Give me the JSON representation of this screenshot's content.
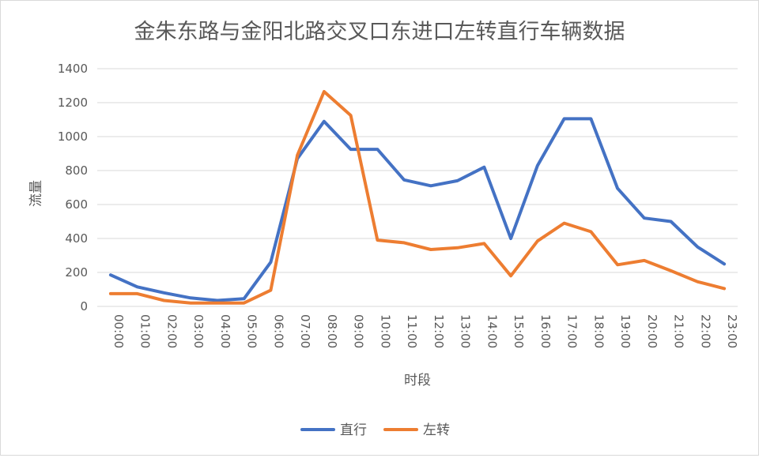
{
  "chart_data": {
    "type": "line",
    "title": "金朱东路与金阳北路交叉口东进口左转直行车辆数据",
    "xlabel": "时段",
    "ylabel": "流量",
    "ylim": [
      0,
      1400
    ],
    "yticks": [
      0,
      200,
      400,
      600,
      800,
      1000,
      1200,
      1400
    ],
    "grid": true,
    "legend_position": "bottom",
    "categories": [
      "00:00",
      "01:00",
      "02:00",
      "03:00",
      "04:00",
      "05:00",
      "06:00",
      "07:00",
      "08:00",
      "09:00",
      "10:00",
      "11:00",
      "12:00",
      "13:00",
      "14:00",
      "15:00",
      "16:00",
      "17:00",
      "18:00",
      "19:00",
      "20:00",
      "21:00",
      "22:00",
      "23:00"
    ],
    "series": [
      {
        "name": "直行",
        "color": "#4472c4",
        "values": [
          185,
          115,
          80,
          50,
          35,
          45,
          260,
          870,
          1090,
          925,
          925,
          745,
          710,
          740,
          820,
          400,
          830,
          1105,
          1105,
          695,
          520,
          500,
          350,
          250
        ]
      },
      {
        "name": "左转",
        "color": "#ed7d31",
        "values": [
          75,
          75,
          35,
          20,
          20,
          20,
          95,
          890,
          1265,
          1125,
          390,
          375,
          335,
          345,
          370,
          180,
          385,
          490,
          440,
          245,
          270,
          210,
          145,
          105
        ]
      }
    ]
  }
}
